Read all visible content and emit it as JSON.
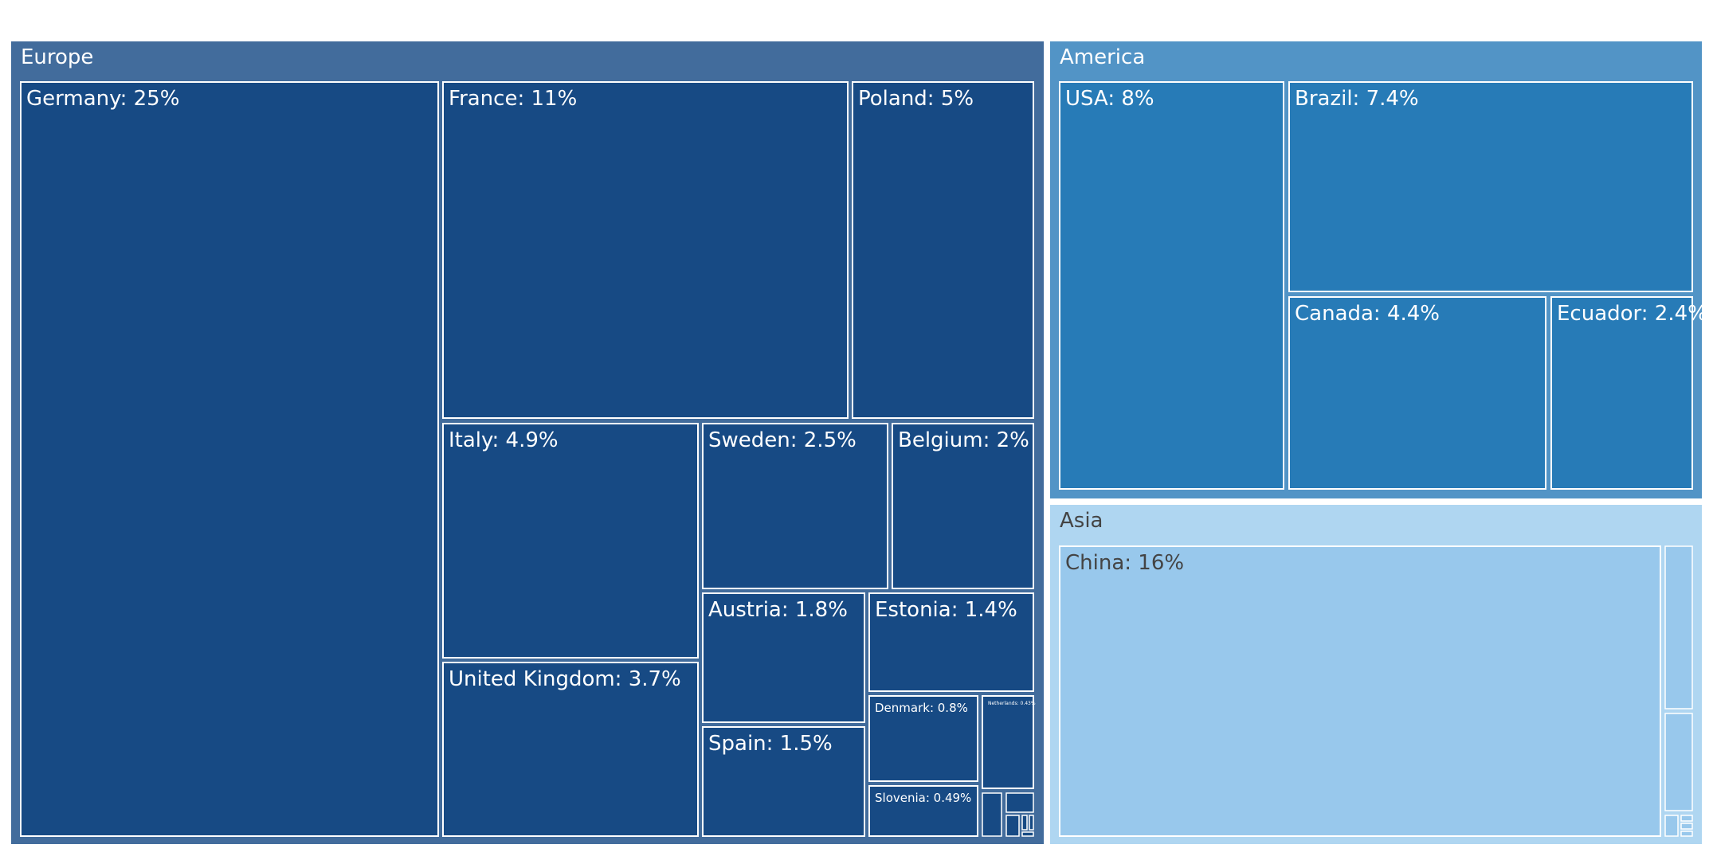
{
  "chart_data": {
    "type": "treemap",
    "title": "",
    "groups": [
      {
        "name": "Europe",
        "color": "#426c9c",
        "leaf_color": "#174a84",
        "text_color": "#ffffff",
        "items": [
          {
            "label": "Germany: 25%",
            "name": "Germany",
            "value": 25
          },
          {
            "label": "France: 11%",
            "name": "France",
            "value": 11
          },
          {
            "label": "Poland: 5%",
            "name": "Poland",
            "value": 5
          },
          {
            "label": "Italy: 4.9%",
            "name": "Italy",
            "value": 4.9
          },
          {
            "label": "Sweden: 2.5%",
            "name": "Sweden",
            "value": 2.5
          },
          {
            "label": "Belgium: 2%",
            "name": "Belgium",
            "value": 2
          },
          {
            "label": "United Kingdom: 3.7%",
            "name": "United Kingdom",
            "value": 3.7
          },
          {
            "label": "Austria: 1.8%",
            "name": "Austria",
            "value": 1.8
          },
          {
            "label": "Estonia: 1.4%",
            "name": "Estonia",
            "value": 1.4
          },
          {
            "label": "Spain: 1.5%",
            "name": "Spain",
            "value": 1.5
          },
          {
            "label": "Denmark: 0.8%",
            "name": "Denmark",
            "value": 0.8
          },
          {
            "label": "Netherlands: 0.43%",
            "name": "Netherlands",
            "value": 0.43
          },
          {
            "label": "Slovenia: 0.49%",
            "name": "Slovenia",
            "value": 0.49
          }
        ]
      },
      {
        "name": "America",
        "color": "#5294c6",
        "leaf_color": "#277bb7",
        "text_color": "#ffffff",
        "items": [
          {
            "label": "USA: 8%",
            "name": "USA",
            "value": 8
          },
          {
            "label": "Brazil: 7.4%",
            "name": "Brazil",
            "value": 7.4
          },
          {
            "label": "Canada: 4.4%",
            "name": "Canada",
            "value": 4.4
          },
          {
            "label": "Ecuador: 2.4%",
            "name": "Ecuador",
            "value": 2.4
          }
        ]
      },
      {
        "name": "Asia",
        "color": "#afd6f1",
        "leaf_color": "#98c8ec",
        "text_color": "#444444",
        "items": [
          {
            "label": "China: 16%",
            "name": "China",
            "value": 16
          }
        ]
      }
    ]
  }
}
